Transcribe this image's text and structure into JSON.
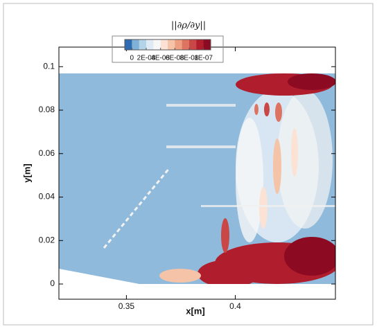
{
  "chart_data": {
    "type": "contour",
    "title": "||∂ρ/∂y||",
    "xlabel": "x[m]",
    "ylabel": "y[m]",
    "xlim": [
      0.319,
      0.446
    ],
    "xticks": [
      0.35,
      0.4
    ],
    "ylim": [
      -0.007,
      0.109
    ],
    "yticks": [
      0,
      0.02,
      0.04,
      0.06,
      0.08,
      0.1
    ],
    "colorbar": {
      "lim": [
        -1e-08,
        1.1e-07
      ],
      "colors": [
        "#2f6bb0",
        "#7fb0d8",
        "#b3d3e8",
        "#deebf5",
        "#f7f7f7",
        "#fbe2d4",
        "#f5c3a7",
        "#ec9f81",
        "#dd7462",
        "#c94747",
        "#b01e2e",
        "#8c0b22"
      ],
      "ticks": [
        {
          "value": 0,
          "label": "0"
        },
        {
          "value": 2e-08,
          "label": "2E-08"
        },
        {
          "value": 4e-08,
          "label": "4E-08"
        },
        {
          "value": 6e-08,
          "label": "6E-08"
        },
        {
          "value": 8e-08,
          "label": "8E-08"
        },
        {
          "value": 1e-07,
          "label": "1E-07"
        }
      ]
    }
  }
}
